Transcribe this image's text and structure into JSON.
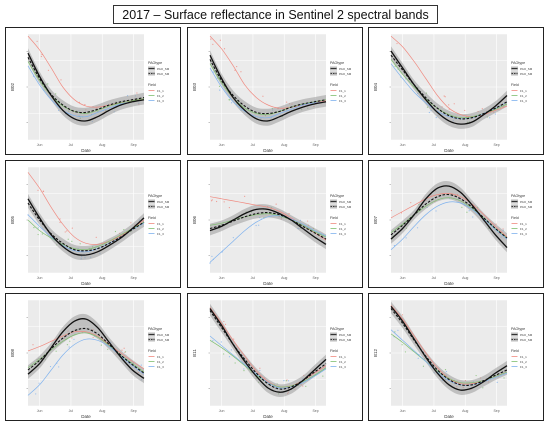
{
  "title": "2017 – Surface reflectance in Sentinel 2 spectral bands",
  "legend": {
    "paotype_title": "PAOtype",
    "paotype_items": [
      "PAO_SM",
      "PAO_SM"
    ],
    "field_title": "Field",
    "field_items": [
      "F1_1",
      "F1_2",
      "F1_3"
    ]
  },
  "colors": {
    "panel_bg": "#ebebeb",
    "field1": "#f08a80",
    "field2": "#7fbf6f",
    "field3": "#7fb2ee",
    "band_fill": "#9a9a9a"
  },
  "chart_data": [
    {
      "type": "line",
      "ylabel": "B02",
      "xlabel": "Date",
      "xticks": [
        "Jun",
        "Jul",
        "Aug",
        "Sep"
      ],
      "ylim": [
        0,
        1
      ],
      "x": [
        0,
        0.1,
        0.2,
        0.3,
        0.4,
        0.5,
        0.6,
        0.7,
        0.8,
        0.9,
        1
      ],
      "series": [
        {
          "name": "PAO_SM",
          "style": "solid",
          "values": [
            0.82,
            0.6,
            0.42,
            0.28,
            0.2,
            0.18,
            0.22,
            0.28,
            0.33,
            0.36,
            0.38
          ]
        },
        {
          "name": "PAO_SM",
          "style": "dashed",
          "values": [
            0.78,
            0.58,
            0.43,
            0.33,
            0.27,
            0.26,
            0.29,
            0.33,
            0.36,
            0.38,
            0.4
          ]
        },
        {
          "name": "F1_1",
          "values": [
            0.98,
            0.85,
            0.68,
            0.5,
            0.38,
            0.32,
            0.31,
            0.33,
            0.35,
            0.37,
            0.39
          ]
        },
        {
          "name": "F1_2",
          "values": [
            0.74,
            0.56,
            0.42,
            0.32,
            0.27,
            0.25,
            0.28,
            0.32,
            0.35,
            0.37,
            0.39
          ]
        },
        {
          "name": "F1_3",
          "values": [
            0.7,
            0.52,
            0.38,
            0.28,
            0.23,
            0.22,
            0.26,
            0.3,
            0.34,
            0.36,
            0.38
          ]
        }
      ]
    },
    {
      "type": "line",
      "ylabel": "B03",
      "xlabel": "Date",
      "xticks": [
        "Jun",
        "Jul",
        "Aug",
        "Sep"
      ],
      "ylim": [
        0,
        1
      ],
      "x": [
        0,
        0.1,
        0.2,
        0.3,
        0.4,
        0.5,
        0.6,
        0.7,
        0.8,
        0.9,
        1
      ],
      "series": [
        {
          "name": "PAO_SM",
          "style": "solid",
          "values": [
            0.8,
            0.58,
            0.4,
            0.28,
            0.2,
            0.18,
            0.22,
            0.27,
            0.31,
            0.34,
            0.36
          ]
        },
        {
          "name": "PAO_SM",
          "style": "dashed",
          "values": [
            0.76,
            0.56,
            0.42,
            0.32,
            0.26,
            0.25,
            0.27,
            0.31,
            0.34,
            0.36,
            0.38
          ]
        },
        {
          "name": "F1_1",
          "values": [
            0.98,
            0.86,
            0.7,
            0.52,
            0.4,
            0.33,
            0.3,
            0.31,
            0.33,
            0.35,
            0.37
          ]
        },
        {
          "name": "F1_2",
          "values": [
            0.72,
            0.54,
            0.4,
            0.3,
            0.25,
            0.24,
            0.27,
            0.31,
            0.34,
            0.36,
            0.38
          ]
        },
        {
          "name": "F1_3",
          "values": [
            0.68,
            0.5,
            0.36,
            0.27,
            0.22,
            0.21,
            0.25,
            0.29,
            0.33,
            0.35,
            0.36
          ]
        }
      ]
    },
    {
      "type": "line",
      "ylabel": "B04",
      "xlabel": "Date",
      "xticks": [
        "Jun",
        "Jul",
        "Aug",
        "Sep"
      ],
      "ylim": [
        0,
        1
      ],
      "x": [
        0,
        0.1,
        0.2,
        0.3,
        0.4,
        0.5,
        0.6,
        0.7,
        0.8,
        0.9,
        1
      ],
      "series": [
        {
          "name": "PAO_SM",
          "style": "solid",
          "values": [
            0.84,
            0.68,
            0.52,
            0.38,
            0.26,
            0.18,
            0.15,
            0.17,
            0.24,
            0.32,
            0.42
          ]
        },
        {
          "name": "PAO_SM",
          "style": "dashed",
          "values": [
            0.8,
            0.66,
            0.52,
            0.4,
            0.3,
            0.23,
            0.2,
            0.21,
            0.25,
            0.3,
            0.36
          ]
        },
        {
          "name": "F1_1",
          "values": [
            0.98,
            0.88,
            0.74,
            0.58,
            0.42,
            0.3,
            0.24,
            0.22,
            0.24,
            0.28,
            0.32
          ]
        },
        {
          "name": "F1_2",
          "values": [
            0.76,
            0.62,
            0.5,
            0.39,
            0.3,
            0.24,
            0.21,
            0.22,
            0.25,
            0.29,
            0.34
          ]
        },
        {
          "name": "F1_3",
          "values": [
            0.72,
            0.58,
            0.45,
            0.35,
            0.27,
            0.22,
            0.2,
            0.21,
            0.25,
            0.3,
            0.36
          ]
        }
      ]
    },
    {
      "type": "line",
      "ylabel": "B05",
      "xlabel": "Date",
      "xticks": [
        "Jun",
        "Jul",
        "Aug",
        "Sep"
      ],
      "ylim": [
        0,
        1
      ],
      "x": [
        0,
        0.1,
        0.2,
        0.3,
        0.4,
        0.5,
        0.6,
        0.7,
        0.8,
        0.9,
        1
      ],
      "series": [
        {
          "name": "PAO_SM",
          "style": "solid",
          "values": [
            0.7,
            0.52,
            0.36,
            0.25,
            0.18,
            0.17,
            0.2,
            0.26,
            0.33,
            0.42,
            0.52
          ]
        },
        {
          "name": "PAO_SM",
          "style": "dashed",
          "values": [
            0.66,
            0.5,
            0.37,
            0.28,
            0.22,
            0.21,
            0.23,
            0.28,
            0.34,
            0.41,
            0.48
          ]
        },
        {
          "name": "F1_1",
          "values": [
            0.95,
            0.8,
            0.62,
            0.46,
            0.34,
            0.28,
            0.27,
            0.3,
            0.35,
            0.42,
            0.5
          ]
        },
        {
          "name": "F1_2",
          "values": [
            0.5,
            0.4,
            0.33,
            0.27,
            0.23,
            0.22,
            0.25,
            0.3,
            0.36,
            0.42,
            0.48
          ]
        },
        {
          "name": "F1_3",
          "values": [
            0.55,
            0.44,
            0.34,
            0.26,
            0.21,
            0.2,
            0.23,
            0.28,
            0.34,
            0.41,
            0.47
          ]
        }
      ]
    },
    {
      "type": "line",
      "ylabel": "B06",
      "xlabel": "Date",
      "xticks": [
        "Jun",
        "Jul",
        "Aug",
        "Sep"
      ],
      "ylim": [
        0,
        1
      ],
      "x": [
        0,
        0.1,
        0.2,
        0.3,
        0.4,
        0.5,
        0.6,
        0.7,
        0.8,
        0.9,
        1
      ],
      "series": [
        {
          "name": "PAO_SM",
          "style": "solid",
          "values": [
            0.4,
            0.44,
            0.5,
            0.56,
            0.6,
            0.6,
            0.56,
            0.5,
            0.42,
            0.34,
            0.27
          ]
        },
        {
          "name": "PAO_SM",
          "style": "dashed",
          "values": [
            0.42,
            0.45,
            0.49,
            0.53,
            0.56,
            0.57,
            0.55,
            0.5,
            0.44,
            0.38,
            0.32
          ]
        },
        {
          "name": "F1_1",
          "values": [
            0.72,
            0.7,
            0.68,
            0.66,
            0.64,
            0.62,
            0.58,
            0.52,
            0.45,
            0.38,
            0.31
          ]
        },
        {
          "name": "F1_2",
          "values": [
            0.45,
            0.47,
            0.5,
            0.53,
            0.55,
            0.56,
            0.54,
            0.5,
            0.45,
            0.39,
            0.34
          ]
        },
        {
          "name": "F1_3",
          "values": [
            0.1,
            0.2,
            0.3,
            0.4,
            0.48,
            0.53,
            0.54,
            0.51,
            0.46,
            0.4,
            0.35
          ]
        }
      ]
    },
    {
      "type": "line",
      "ylabel": "B07",
      "xlabel": "Date",
      "xticks": [
        "Jun",
        "Jul",
        "Aug",
        "Sep"
      ],
      "ylim": [
        0,
        1
      ],
      "x": [
        0,
        0.1,
        0.2,
        0.3,
        0.4,
        0.5,
        0.6,
        0.7,
        0.8,
        0.9,
        1
      ],
      "series": [
        {
          "name": "PAO_SM",
          "style": "solid",
          "values": [
            0.32,
            0.42,
            0.55,
            0.7,
            0.8,
            0.82,
            0.76,
            0.64,
            0.5,
            0.36,
            0.24
          ]
        },
        {
          "name": "PAO_SM",
          "style": "dashed",
          "values": [
            0.36,
            0.45,
            0.55,
            0.65,
            0.72,
            0.74,
            0.7,
            0.62,
            0.52,
            0.42,
            0.33
          ]
        },
        {
          "name": "F1_1",
          "values": [
            0.52,
            0.58,
            0.64,
            0.7,
            0.74,
            0.75,
            0.72,
            0.65,
            0.55,
            0.44,
            0.34
          ]
        },
        {
          "name": "F1_2",
          "values": [
            0.38,
            0.46,
            0.55,
            0.63,
            0.69,
            0.71,
            0.68,
            0.61,
            0.52,
            0.42,
            0.33
          ]
        },
        {
          "name": "F1_3",
          "values": [
            0.22,
            0.32,
            0.44,
            0.55,
            0.63,
            0.67,
            0.66,
            0.6,
            0.51,
            0.41,
            0.32
          ]
        }
      ]
    },
    {
      "type": "line",
      "ylabel": "B08",
      "xlabel": "Date",
      "xticks": [
        "Jun",
        "Jul",
        "Aug",
        "Sep"
      ],
      "ylim": [
        0,
        1
      ],
      "x": [
        0,
        0.1,
        0.2,
        0.3,
        0.4,
        0.5,
        0.6,
        0.7,
        0.8,
        0.9,
        1
      ],
      "series": [
        {
          "name": "PAO_SM",
          "style": "solid",
          "values": [
            0.3,
            0.4,
            0.55,
            0.7,
            0.8,
            0.82,
            0.74,
            0.6,
            0.46,
            0.34,
            0.26
          ]
        },
        {
          "name": "PAO_SM",
          "style": "dashed",
          "values": [
            0.34,
            0.43,
            0.54,
            0.64,
            0.71,
            0.73,
            0.68,
            0.58,
            0.48,
            0.39,
            0.31
          ]
        },
        {
          "name": "F1_1",
          "values": [
            0.52,
            0.56,
            0.61,
            0.66,
            0.7,
            0.7,
            0.66,
            0.58,
            0.5,
            0.42,
            0.35
          ]
        },
        {
          "name": "F1_2",
          "values": [
            0.36,
            0.44,
            0.53,
            0.61,
            0.67,
            0.69,
            0.65,
            0.57,
            0.48,
            0.4,
            0.32
          ]
        },
        {
          "name": "F1_3",
          "values": [
            0.1,
            0.2,
            0.34,
            0.48,
            0.58,
            0.63,
            0.62,
            0.56,
            0.47,
            0.38,
            0.3
          ]
        }
      ]
    },
    {
      "type": "line",
      "ylabel": "B11",
      "xlabel": "Date",
      "xticks": [
        "Jun",
        "Jul",
        "Aug",
        "Sep"
      ],
      "ylim": [
        0,
        1
      ],
      "x": [
        0,
        0.1,
        0.2,
        0.3,
        0.4,
        0.5,
        0.6,
        0.7,
        0.8,
        0.9,
        1
      ],
      "series": [
        {
          "name": "PAO_SM",
          "style": "solid",
          "values": [
            0.92,
            0.76,
            0.58,
            0.42,
            0.28,
            0.17,
            0.13,
            0.16,
            0.24,
            0.34,
            0.44
          ]
        },
        {
          "name": "PAO_SM",
          "style": "dashed",
          "values": [
            0.9,
            0.74,
            0.58,
            0.44,
            0.31,
            0.21,
            0.16,
            0.18,
            0.24,
            0.32,
            0.4
          ]
        },
        {
          "name": "F1_1",
          "values": [
            0.93,
            0.78,
            0.62,
            0.47,
            0.33,
            0.23,
            0.18,
            0.19,
            0.24,
            0.31,
            0.38
          ]
        },
        {
          "name": "F1_2",
          "values": [
            0.62,
            0.55,
            0.47,
            0.38,
            0.29,
            0.22,
            0.18,
            0.19,
            0.23,
            0.29,
            0.36
          ]
        },
        {
          "name": "F1_3",
          "values": [
            0.66,
            0.57,
            0.48,
            0.39,
            0.3,
            0.22,
            0.17,
            0.18,
            0.22,
            0.28,
            0.35
          ]
        }
      ]
    },
    {
      "type": "line",
      "ylabel": "B12",
      "xlabel": "Date",
      "xticks": [
        "Jun",
        "Jul",
        "Aug",
        "Sep"
      ],
      "ylim": [
        0,
        1
      ],
      "x": [
        0,
        0.1,
        0.2,
        0.3,
        0.4,
        0.5,
        0.6,
        0.7,
        0.8,
        0.9,
        1
      ],
      "series": [
        {
          "name": "PAO_SM",
          "style": "solid",
          "values": [
            0.94,
            0.8,
            0.63,
            0.46,
            0.31,
            0.2,
            0.15,
            0.17,
            0.23,
            0.31,
            0.38
          ]
        },
        {
          "name": "PAO_SM",
          "style": "dashed",
          "values": [
            0.92,
            0.78,
            0.62,
            0.47,
            0.34,
            0.25,
            0.2,
            0.2,
            0.24,
            0.29,
            0.34
          ]
        },
        {
          "name": "F1_1",
          "values": [
            0.95,
            0.82,
            0.66,
            0.5,
            0.36,
            0.26,
            0.21,
            0.21,
            0.24,
            0.28,
            0.32
          ]
        },
        {
          "name": "F1_2",
          "values": [
            0.68,
            0.6,
            0.51,
            0.42,
            0.33,
            0.26,
            0.22,
            0.22,
            0.24,
            0.28,
            0.32
          ]
        },
        {
          "name": "F1_3",
          "values": [
            0.72,
            0.62,
            0.52,
            0.42,
            0.32,
            0.24,
            0.2,
            0.2,
            0.23,
            0.27,
            0.31
          ]
        }
      ]
    }
  ]
}
